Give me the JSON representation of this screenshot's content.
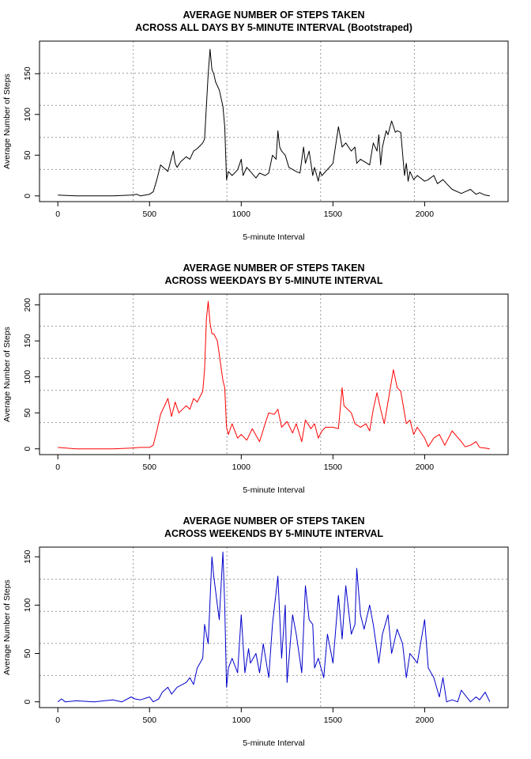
{
  "chart_data": [
    {
      "type": "line",
      "title_line1": "AVERAGE NUMBER OF STEPS TAKEN",
      "title_line2": "ACROSS ALL DAYS BY 5-MINUTE INTERVAL (Bootstraped)",
      "xlabel": "5-minute Interval",
      "ylabel": "Average Number of Steps",
      "xlim": [
        -100,
        2455
      ],
      "ylim": [
        -7,
        190
      ],
      "xticks": [
        0,
        500,
        1000,
        1500,
        2000
      ],
      "yticks": [
        0,
        50,
        100,
        150
      ],
      "grid": true,
      "series_color": "#000000",
      "x": [
        0,
        100,
        200,
        300,
        400,
        430,
        450,
        500,
        520,
        540,
        560,
        600,
        620,
        630,
        640,
        650,
        670,
        700,
        720,
        740,
        760,
        790,
        800,
        810,
        820,
        830,
        840,
        850,
        860,
        880,
        900,
        910,
        920,
        930,
        950,
        980,
        1000,
        1010,
        1030,
        1050,
        1080,
        1100,
        1130,
        1150,
        1170,
        1190,
        1200,
        1210,
        1220,
        1240,
        1260,
        1300,
        1320,
        1340,
        1350,
        1370,
        1390,
        1400,
        1420,
        1430,
        1440,
        1460,
        1500,
        1530,
        1550,
        1570,
        1600,
        1620,
        1630,
        1650,
        1700,
        1720,
        1740,
        1750,
        1760,
        1770,
        1790,
        1800,
        1820,
        1840,
        1850,
        1870,
        1890,
        1900,
        1910,
        1920,
        1940,
        1960,
        2000,
        2020,
        2050,
        2070,
        2100,
        2120,
        2150,
        2200,
        2220,
        2250,
        2280,
        2300,
        2330,
        2355
      ],
      "y": [
        1,
        0,
        0,
        0,
        1,
        2,
        0,
        2,
        5,
        20,
        38,
        30,
        47,
        55,
        40,
        35,
        42,
        48,
        45,
        55,
        58,
        65,
        70,
        110,
        150,
        180,
        155,
        150,
        140,
        130,
        110,
        85,
        20,
        30,
        25,
        32,
        45,
        25,
        35,
        30,
        22,
        28,
        25,
        28,
        50,
        45,
        80,
        60,
        55,
        50,
        35,
        30,
        28,
        60,
        40,
        55,
        25,
        35,
        18,
        30,
        25,
        30,
        40,
        85,
        60,
        65,
        55,
        60,
        40,
        45,
        38,
        65,
        55,
        75,
        38,
        60,
        80,
        75,
        92,
        78,
        80,
        78,
        25,
        40,
        18,
        30,
        20,
        25,
        18,
        20,
        25,
        15,
        20,
        15,
        8,
        3,
        5,
        8,
        2,
        4,
        1,
        0
      ]
    },
    {
      "type": "line",
      "title_line1": "AVERAGE NUMBER OF STEPS TAKEN",
      "title_line2": "ACROSS WEEKDAYS BY 5-MINUTE INTERVAL",
      "xlabel": "5-minute Interval",
      "ylabel": "Average Number of Steps",
      "xlim": [
        -100,
        2455
      ],
      "ylim": [
        -8,
        215
      ],
      "xticks": [
        0,
        500,
        1000,
        1500,
        2000
      ],
      "yticks": [
        0,
        50,
        100,
        150,
        200
      ],
      "grid": true,
      "series_color": "#ff0000",
      "x": [
        0,
        100,
        200,
        300,
        400,
        450,
        500,
        520,
        540,
        560,
        600,
        620,
        640,
        660,
        680,
        700,
        720,
        740,
        760,
        790,
        800,
        810,
        820,
        830,
        840,
        850,
        870,
        900,
        910,
        920,
        930,
        950,
        980,
        1000,
        1030,
        1060,
        1100,
        1130,
        1150,
        1180,
        1200,
        1220,
        1250,
        1280,
        1300,
        1330,
        1350,
        1380,
        1400,
        1420,
        1440,
        1460,
        1500,
        1530,
        1550,
        1560,
        1600,
        1620,
        1650,
        1680,
        1700,
        1720,
        1740,
        1760,
        1780,
        1800,
        1830,
        1850,
        1870,
        1900,
        1920,
        1940,
        1960,
        2000,
        2020,
        2050,
        2080,
        2110,
        2150,
        2200,
        2220,
        2250,
        2280,
        2300,
        2330,
        2355
      ],
      "y": [
        2,
        0,
        0,
        0,
        1,
        2,
        2,
        5,
        25,
        48,
        70,
        45,
        65,
        50,
        55,
        60,
        55,
        70,
        65,
        80,
        110,
        180,
        205,
        175,
        160,
        160,
        150,
        95,
        85,
        30,
        20,
        35,
        15,
        20,
        12,
        28,
        10,
        35,
        50,
        48,
        55,
        30,
        38,
        22,
        35,
        10,
        40,
        28,
        35,
        15,
        25,
        30,
        30,
        28,
        85,
        60,
        50,
        35,
        30,
        35,
        25,
        55,
        78,
        55,
        35,
        65,
        110,
        85,
        80,
        35,
        40,
        20,
        30,
        15,
        3,
        15,
        20,
        5,
        25,
        10,
        3,
        5,
        10,
        2,
        1,
        0
      ]
    },
    {
      "type": "line",
      "title_line1": "AVERAGE NUMBER OF STEPS TAKEN",
      "title_line2": "ACROSS WEEKENDS BY 5-MINUTE INTERVAL",
      "xlabel": "5-minute Interval",
      "ylabel": "Average Number of Steps",
      "xlim": [
        -100,
        2455
      ],
      "ylim": [
        -6,
        160
      ],
      "xticks": [
        0,
        500,
        1000,
        1500,
        2000
      ],
      "yticks": [
        0,
        50,
        100,
        150
      ],
      "grid": true,
      "series_color": "#0000cc",
      "x": [
        0,
        20,
        40,
        100,
        200,
        300,
        350,
        400,
        420,
        450,
        500,
        520,
        550,
        570,
        600,
        620,
        650,
        700,
        720,
        740,
        760,
        790,
        800,
        820,
        840,
        850,
        870,
        880,
        900,
        910,
        920,
        930,
        950,
        980,
        1000,
        1020,
        1040,
        1050,
        1080,
        1100,
        1120,
        1150,
        1170,
        1200,
        1220,
        1240,
        1250,
        1280,
        1300,
        1330,
        1350,
        1370,
        1390,
        1400,
        1420,
        1450,
        1470,
        1500,
        1530,
        1550,
        1570,
        1600,
        1620,
        1630,
        1650,
        1670,
        1700,
        1720,
        1750,
        1770,
        1800,
        1820,
        1850,
        1880,
        1900,
        1920,
        1940,
        1960,
        2000,
        2020,
        2050,
        2080,
        2100,
        2120,
        2150,
        2180,
        2200,
        2250,
        2280,
        2300,
        2330,
        2355
      ],
      "y": [
        0,
        3,
        0,
        1,
        0,
        2,
        0,
        5,
        3,
        2,
        5,
        0,
        3,
        10,
        15,
        8,
        15,
        20,
        25,
        18,
        35,
        45,
        80,
        60,
        150,
        130,
        100,
        85,
        155,
        100,
        15,
        35,
        45,
        30,
        90,
        30,
        55,
        40,
        50,
        30,
        60,
        25,
        80,
        130,
        45,
        100,
        20,
        90,
        70,
        30,
        120,
        85,
        80,
        35,
        45,
        25,
        70,
        40,
        110,
        65,
        120,
        70,
        80,
        138,
        90,
        75,
        100,
        80,
        40,
        70,
        90,
        50,
        75,
        60,
        25,
        50,
        45,
        40,
        85,
        35,
        25,
        5,
        25,
        0,
        2,
        0,
        12,
        0,
        5,
        2,
        10,
        0
      ]
    }
  ]
}
